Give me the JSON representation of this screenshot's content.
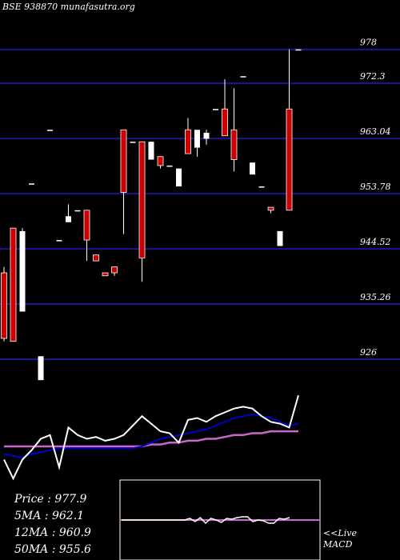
{
  "header": {
    "title": "BSE 938870  munafasutra.org"
  },
  "colors": {
    "background": "#000000",
    "grid": "#1a1a8c",
    "up_candle": "#ffffff",
    "down_candle": "#cc0000",
    "ma_fast": "#ffffff",
    "ma_mid": "#0000cc",
    "ma_slow": "#cc66cc",
    "macd_box": "#ffffff"
  },
  "stats": {
    "price": "Price   : 977.9",
    "ma5": "5MA : 962.1",
    "ma12": "12MA : 960.9",
    "ma50": "50MA : 955.6"
  },
  "macd": {
    "label1": "<<Live",
    "label2": "MACD"
  },
  "chart_data": {
    "type": "candlestick",
    "y_ticks": [
      978,
      972.3,
      963.04,
      953.78,
      944.52,
      935.26,
      926
    ],
    "ylim": [
      920.5,
      983.6
    ],
    "candles": [
      {
        "o": 940.5,
        "h": 941.5,
        "l": 929.0,
        "c": 929.5
      },
      {
        "o": 948.0,
        "h": 948.0,
        "l": 929.0,
        "c": 929.0
      },
      {
        "o": 934.0,
        "h": 948.0,
        "l": 934.0,
        "c": 947.5
      },
      {
        "o": 955.5,
        "h": 955.5,
        "l": 955.5,
        "c": 955.5
      },
      {
        "o": 922.5,
        "h": 926.5,
        "l": 922.5,
        "c": 926.5
      },
      {
        "o": 964.5,
        "h": 964.5,
        "l": 964.5,
        "c": 964.5
      },
      {
        "o": 946.0,
        "h": 946.0,
        "l": 946.0,
        "c": 946.0
      },
      {
        "o": 949.0,
        "h": 952.0,
        "l": 949.0,
        "c": 950.0
      },
      {
        "o": 951.0,
        "h": 951.0,
        "l": 951.0,
        "c": 951.0
      },
      {
        "o": 951.0,
        "h": 951.0,
        "l": 942.5,
        "c": 946.0
      },
      {
        "o": 943.5,
        "h": 943.5,
        "l": 942.5,
        "c": 942.5
      },
      {
        "o": 940.5,
        "h": 940.5,
        "l": 940.0,
        "c": 940.0
      },
      {
        "o": 941.5,
        "h": 941.5,
        "l": 940.0,
        "c": 940.5
      },
      {
        "o": 964.5,
        "h": 964.5,
        "l": 947.0,
        "c": 954.0
      },
      {
        "o": 962.5,
        "h": 962.5,
        "l": 962.5,
        "c": 962.5
      },
      {
        "o": 962.5,
        "h": 962.5,
        "l": 939.0,
        "c": 943.0
      },
      {
        "o": 959.5,
        "h": 962.5,
        "l": 959.5,
        "c": 962.5
      },
      {
        "o": 960.0,
        "h": 960.0,
        "l": 958.0,
        "c": 958.5
      },
      {
        "o": 958.5,
        "h": 958.5,
        "l": 958.5,
        "c": 958.5
      },
      {
        "o": 955.0,
        "h": 958.0,
        "l": 955.0,
        "c": 958.0
      },
      {
        "o": 964.5,
        "h": 966.5,
        "l": 960.5,
        "c": 960.5
      },
      {
        "o": 961.5,
        "h": 964.5,
        "l": 960.0,
        "c": 964.5
      },
      {
        "o": 963.0,
        "h": 964.5,
        "l": 962.0,
        "c": 964.0
      },
      {
        "o": 968.0,
        "h": 968.0,
        "l": 968.0,
        "c": 968.0
      },
      {
        "o": 968.0,
        "h": 973.0,
        "l": 963.5,
        "c": 963.5
      },
      {
        "o": 964.5,
        "h": 971.5,
        "l": 957.5,
        "c": 959.5
      },
      {
        "o": 973.5,
        "h": 973.5,
        "l": 973.5,
        "c": 973.5
      },
      {
        "o": 957.0,
        "h": 959.0,
        "l": 957.0,
        "c": 959.0
      },
      {
        "o": 955.0,
        "h": 955.0,
        "l": 955.0,
        "c": 955.0
      },
      {
        "o": 951.5,
        "h": 951.5,
        "l": 950.5,
        "c": 951.0
      },
      {
        "o": 945.0,
        "h": 947.5,
        "l": 945.0,
        "c": 947.5
      },
      {
        "o": 968.0,
        "h": 978.0,
        "l": 951.0,
        "c": 951.0
      },
      {
        "o": 978.0,
        "h": 978.0,
        "l": 978.0,
        "c": 978.0
      }
    ],
    "ma_fast": [
      935,
      925,
      935,
      940,
      946,
      948,
      931,
      952,
      948,
      946,
      947,
      945,
      946,
      948,
      953,
      958,
      954,
      950,
      949,
      944,
      956,
      957,
      955,
      958,
      960,
      962,
      963,
      962,
      958,
      955,
      954,
      952,
      969
    ],
    "ma_mid": [
      938,
      937,
      936,
      938,
      939,
      940,
      941,
      941,
      941,
      941,
      941,
      941,
      941,
      941,
      941,
      942,
      944,
      946,
      947,
      948,
      949,
      950,
      951,
      953,
      955,
      957,
      958,
      959,
      958,
      957,
      955,
      953,
      954
    ],
    "ma_slow": [
      942,
      942,
      942,
      942,
      942,
      942,
      942,
      942,
      942,
      942,
      942,
      942,
      942,
      942,
      942,
      942,
      943,
      943,
      944,
      944,
      945,
      945,
      946,
      946,
      947,
      948,
      948,
      949,
      949,
      950,
      950,
      950,
      950
    ],
    "macd_series": [
      0,
      0,
      0,
      0,
      0,
      0,
      0,
      0,
      0,
      0,
      0,
      0,
      0,
      2,
      -2,
      3,
      -4,
      2,
      0,
      -3,
      2,
      1,
      3,
      4,
      4,
      -2,
      0,
      -1,
      -4,
      -4,
      2,
      1,
      3
    ]
  }
}
